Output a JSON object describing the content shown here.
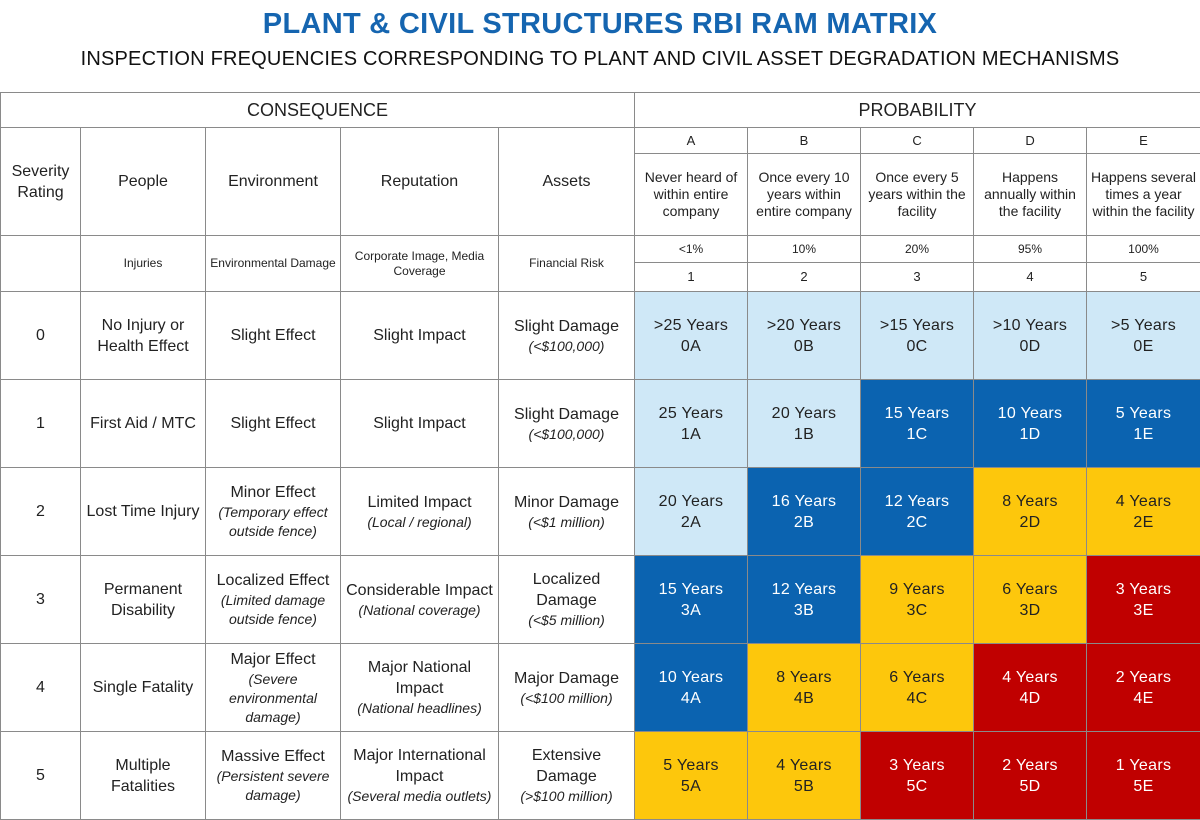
{
  "title": "PLANT & CIVIL STRUCTURES RBI RAM MATRIX",
  "subtitle": "INSPECTION FREQUENCIES CORRESPONDING TO PLANT AND CIVIL ASSET DEGRADATION MECHANISMS",
  "headers": {
    "consequence": "CONSEQUENCE",
    "probability": "PROBABILITY",
    "columns": [
      "Severity Rating",
      "People",
      "Environment",
      "Reputation",
      "Assets"
    ],
    "subcolumns": [
      "",
      "Injuries",
      "Environmental Damage",
      "Corporate Image, Media Coverage",
      "Financial Risk"
    ]
  },
  "probability": [
    {
      "letter": "A",
      "desc": "Never heard of within entire company",
      "pct": "<1%",
      "num": "1"
    },
    {
      "letter": "B",
      "desc": "Once every 10 years within entire company",
      "pct": "10%",
      "num": "2"
    },
    {
      "letter": "C",
      "desc": "Once every 5 years within the facility",
      "pct": "20%",
      "num": "3"
    },
    {
      "letter": "D",
      "desc": "Happens annually within the facility",
      "pct": "95%",
      "num": "4"
    },
    {
      "letter": "E",
      "desc": "Happens several times a year within the facility",
      "pct": "100%",
      "num": "5"
    }
  ],
  "colors": {
    "low": "#cfe8f7",
    "medium": "#0b63b0",
    "high": "#fdc70c",
    "extreme": "#c00000",
    "title": "#1565b0"
  },
  "rows": [
    {
      "severity": "0",
      "people": "No Injury or Health Effect",
      "env": "Slight Effect",
      "env_note": "",
      "rep": "Slight Impact",
      "rep_note": "",
      "assets": "Slight Damage",
      "assets_note": "(<$100,000)",
      "cells": [
        {
          "years": ">25 Years",
          "code": "0A",
          "level": "L"
        },
        {
          "years": ">20 Years",
          "code": "0B",
          "level": "L"
        },
        {
          "years": ">15 Years",
          "code": "0C",
          "level": "L"
        },
        {
          "years": ">10 Years",
          "code": "0D",
          "level": "L"
        },
        {
          "years": ">5 Years",
          "code": "0E",
          "level": "L"
        }
      ]
    },
    {
      "severity": "1",
      "people": "First Aid / MTC",
      "env": "Slight Effect",
      "env_note": "",
      "rep": "Slight Impact",
      "rep_note": "",
      "assets": "Slight Damage",
      "assets_note": "(<$100,000)",
      "cells": [
        {
          "years": "25 Years",
          "code": "1A",
          "level": "L"
        },
        {
          "years": "20 Years",
          "code": "1B",
          "level": "L"
        },
        {
          "years": "15 Years",
          "code": "1C",
          "level": "M"
        },
        {
          "years": "10 Years",
          "code": "1D",
          "level": "M"
        },
        {
          "years": "5 Years",
          "code": "1E",
          "level": "M"
        }
      ]
    },
    {
      "severity": "2",
      "people": "Lost Time Injury",
      "env": "Minor Effect",
      "env_note": "(Temporary effect outside fence)",
      "rep": "Limited Impact",
      "rep_note": "(Local / regional)",
      "assets": "Minor Damage",
      "assets_note": "(<$1 million)",
      "cells": [
        {
          "years": "20 Years",
          "code": "2A",
          "level": "L"
        },
        {
          "years": "16 Years",
          "code": "2B",
          "level": "M"
        },
        {
          "years": "12 Years",
          "code": "2C",
          "level": "M"
        },
        {
          "years": "8 Years",
          "code": "2D",
          "level": "H"
        },
        {
          "years": "4 Years",
          "code": "2E",
          "level": "H"
        }
      ]
    },
    {
      "severity": "3",
      "people": "Permanent Disability",
      "env": "Localized Effect",
      "env_note": "(Limited damage outside fence)",
      "rep": "Considerable Impact",
      "rep_note": "(National coverage)",
      "assets": "Localized Damage",
      "assets_note": "(<$5 million)",
      "cells": [
        {
          "years": "15 Years",
          "code": "3A",
          "level": "M"
        },
        {
          "years": "12 Years",
          "code": "3B",
          "level": "M"
        },
        {
          "years": "9 Years",
          "code": "3C",
          "level": "H"
        },
        {
          "years": "6 Years",
          "code": "3D",
          "level": "H"
        },
        {
          "years": "3 Years",
          "code": "3E",
          "level": "X"
        }
      ]
    },
    {
      "severity": "4",
      "people": "Single Fatality",
      "env": "Major Effect",
      "env_note": "(Severe environmental damage)",
      "rep": "Major National Impact",
      "rep_note": "(National headlines)",
      "assets": "Major Damage",
      "assets_note": "(<$100 million)",
      "cells": [
        {
          "years": "10 Years",
          "code": "4A",
          "level": "M"
        },
        {
          "years": "8 Years",
          "code": "4B",
          "level": "H"
        },
        {
          "years": "6 Years",
          "code": "4C",
          "level": "H"
        },
        {
          "years": "4 Years",
          "code": "4D",
          "level": "X"
        },
        {
          "years": "2 Years",
          "code": "4E",
          "level": "X"
        }
      ]
    },
    {
      "severity": "5",
      "people": "Multiple Fatalities",
      "env": "Massive Effect",
      "env_note": "(Persistent severe damage)",
      "rep": "Major International Impact",
      "rep_note": "(Several media outlets)",
      "assets": "Extensive Damage",
      "assets_note": "(>$100 million)",
      "cells": [
        {
          "years": "5 Years",
          "code": "5A",
          "level": "H"
        },
        {
          "years": "4 Years",
          "code": "5B",
          "level": "H"
        },
        {
          "years": "3 Years",
          "code": "5C",
          "level": "X"
        },
        {
          "years": "2 Years",
          "code": "5D",
          "level": "X"
        },
        {
          "years": "1 Years",
          "code": "5E",
          "level": "X"
        }
      ]
    }
  ]
}
